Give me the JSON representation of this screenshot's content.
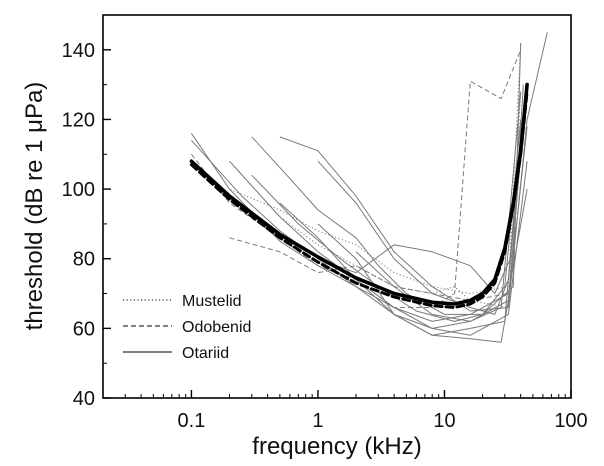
{
  "chart_data": {
    "type": "line",
    "xlabel": "frequency (kHz)",
    "ylabel": "threshold (dB re 1 μPa)",
    "x_scale": "log",
    "xlim": [
      0.02,
      100
    ],
    "ylim": [
      40,
      150
    ],
    "x_ticks": [
      {
        "value": 0.1,
        "label": "0.1"
      },
      {
        "value": 1,
        "label": "1"
      },
      {
        "value": 10,
        "label": "10"
      },
      {
        "value": 100,
        "label": "100"
      }
    ],
    "y_ticks": [
      {
        "value": 40,
        "label": "40"
      },
      {
        "value": 60,
        "label": "60"
      },
      {
        "value": 80,
        "label": "80"
      },
      {
        "value": 100,
        "label": "100"
      },
      {
        "value": 120,
        "label": "120"
      },
      {
        "value": 140,
        "label": "140"
      }
    ],
    "grid": false,
    "legend_position": "bottom-left",
    "legend": [
      {
        "label": "Mustelid",
        "dash": "dotted"
      },
      {
        "label": "Odobenid",
        "dash": "dashed"
      },
      {
        "label": "Otariid",
        "dash": "solid"
      }
    ],
    "series": [
      {
        "group": "Otariid",
        "dash": "solid",
        "x": [
          0.1,
          0.2,
          0.5,
          1,
          2,
          4,
          8,
          16,
          32,
          45
        ],
        "y": [
          116,
          100,
          85,
          78,
          72,
          66,
          62,
          64,
          70,
          100
        ]
      },
      {
        "group": "Otariid",
        "dash": "solid",
        "x": [
          0.1,
          0.25,
          0.5,
          1,
          2,
          4,
          8,
          16,
          28,
          40
        ],
        "y": [
          114,
          98,
          88,
          80,
          72,
          64,
          60,
          62,
          66,
          128
        ]
      },
      {
        "group": "Otariid",
        "dash": "solid",
        "x": [
          0.3,
          0.6,
          1,
          2,
          3,
          5,
          10,
          20,
          35,
          40
        ],
        "y": [
          115,
          103,
          94,
          86,
          78,
          70,
          64,
          64,
          72,
          142
        ]
      },
      {
        "group": "Otariid",
        "dash": "solid",
        "x": [
          0.5,
          1,
          2,
          4,
          8,
          16,
          32,
          45,
          65
        ],
        "y": [
          115,
          111,
          98,
          82,
          72,
          65,
          66,
          120,
          145
        ]
      },
      {
        "group": "Otariid",
        "dash": "solid",
        "x": [
          1,
          2,
          4,
          8,
          16,
          25,
          32,
          45
        ],
        "y": [
          108,
          96,
          80,
          70,
          66,
          64,
          74,
          128
        ]
      },
      {
        "group": "Otariid",
        "dash": "solid",
        "x": [
          0.2,
          0.5,
          1,
          2,
          4,
          8,
          16,
          32,
          45
        ],
        "y": [
          108,
          92,
          82,
          74,
          66,
          60,
          58,
          64,
          108
        ]
      },
      {
        "group": "Otariid",
        "dash": "solid",
        "x": [
          1,
          2,
          4,
          8,
          16,
          28,
          32,
          40
        ],
        "y": [
          90,
          80,
          64,
          58,
          57,
          56,
          68,
          110
        ]
      },
      {
        "group": "Otariid",
        "dash": "solid",
        "x": [
          0.5,
          1,
          2,
          4,
          8,
          16,
          30,
          40
        ],
        "y": [
          96,
          86,
          74,
          64,
          58,
          60,
          62,
          116
        ]
      },
      {
        "group": "Otariid",
        "dash": "solid",
        "x": [
          2,
          4,
          8,
          16,
          32,
          45
        ],
        "y": [
          82,
          72,
          64,
          62,
          68,
          118
        ]
      },
      {
        "group": "Otariid",
        "dash": "solid",
        "x": [
          1,
          2,
          4,
          8,
          16,
          25,
          35,
          42
        ],
        "y": [
          80,
          76,
          84,
          82,
          78,
          70,
          82,
          130
        ]
      },
      {
        "group": "Otariid",
        "dash": "solid",
        "x": [
          0.3,
          0.7,
          1.5,
          3,
          6,
          12,
          20,
          30,
          40
        ],
        "y": [
          104,
          90,
          80,
          72,
          65,
          62,
          64,
          72,
          120
        ]
      },
      {
        "group": "Mustelid",
        "dash": "dotted",
        "x": [
          0.1,
          0.2,
          0.5,
          1,
          2,
          4,
          8,
          16,
          32,
          40
        ],
        "y": [
          116,
          100,
          94,
          88,
          84,
          76,
          72,
          70,
          72,
          142
        ]
      },
      {
        "group": "Mustelid",
        "dash": "dotted",
        "x": [
          0.2,
          0.5,
          1,
          2,
          4,
          8,
          12,
          16,
          32,
          40
        ],
        "y": [
          108,
          92,
          84,
          78,
          72,
          70,
          72,
          68,
          66,
          128
        ]
      },
      {
        "group": "Odobenid",
        "dash": "dashed",
        "x": [
          0.1,
          0.2,
          0.5,
          1,
          2,
          4,
          8,
          12,
          16,
          28,
          40
        ],
        "y": [
          110,
          96,
          86,
          78,
          74,
          66,
          66,
          70,
          131,
          126,
          140
        ]
      },
      {
        "group": "Odobenid",
        "dash": "dashed",
        "x": [
          0.2,
          0.5,
          1,
          2,
          4,
          8,
          16,
          32
        ],
        "y": [
          86,
          82,
          76,
          78,
          72,
          70,
          68,
          70
        ]
      },
      {
        "group": "mean",
        "dash": "dashed",
        "width": 3,
        "x": [
          0.1,
          0.2,
          0.5,
          1,
          2,
          4,
          8,
          12,
          16,
          20,
          25,
          30,
          35,
          40,
          45
        ],
        "y": [
          107,
          97,
          86,
          79,
          73,
          69,
          66.5,
          66,
          67,
          69,
          73,
          82,
          95,
          110,
          128
        ]
      },
      {
        "group": "mean",
        "dash": "solid",
        "width": 3.6,
        "x": [
          0.1,
          0.2,
          0.5,
          1,
          2,
          4,
          8,
          12,
          16,
          20,
          25,
          30,
          35,
          40,
          45
        ],
        "y": [
          108,
          98,
          87,
          80.5,
          74.5,
          70,
          67.5,
          67,
          68,
          70,
          74,
          83,
          96,
          111,
          130
        ]
      }
    ]
  }
}
